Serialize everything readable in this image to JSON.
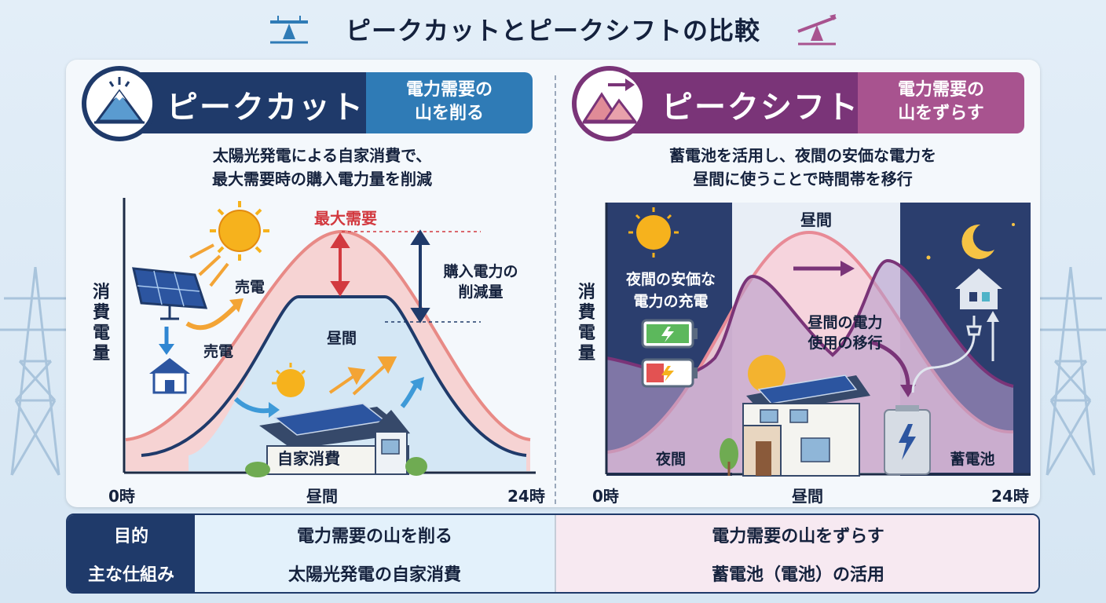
{
  "title": "ピークカットとピークシフトの比較",
  "colors": {
    "peakcut_navy": "#1f3a6a",
    "peakcut_blue": "#2f7bb6",
    "peakshift_purple": "#7a3478",
    "peakshift_pink": "#a8538f",
    "demand_red": "#d2393f"
  },
  "peak_cut": {
    "title": "ピークカット",
    "subtitle_line1": "電力需要の",
    "subtitle_line2": "山を削る",
    "desc_line1": "太陽光発電による自家消費で、",
    "desc_line2": "最大需要時の購入電力量を削減",
    "ylabel": "消費電量",
    "max_demand": "最大需要",
    "reduction_line1": "購入電力の",
    "reduction_line2": "削減量",
    "sell1": "売電",
    "sell2": "売電",
    "daytime": "昼間",
    "self_consumption": "自家消費",
    "x_start": "0時",
    "x_mid": "昼間",
    "x_end": "24時"
  },
  "peak_shift": {
    "title": "ピークシフト",
    "subtitle_line1": "電力需要の",
    "subtitle_line2": "山をずらす",
    "desc_line1": "蓄電池を活用し、夜間の安価な電力を",
    "desc_line2": "昼間に使うことで時間帯を移行",
    "ylabel": "消費電量",
    "daytime_top": "昼間",
    "night_charge_line1": "夜間の安価な",
    "night_charge_line2": "電力の充電",
    "shift_line1": "昼間の電力",
    "shift_line2": "使用の移行",
    "night": "夜間",
    "battery": "蓄電池",
    "x_start": "0時",
    "x_mid": "昼間",
    "x_end": "24時"
  },
  "table": {
    "row1_head": "目的",
    "row1_left": "電力需要の山を削る",
    "row1_right": "電力需要の山をずらす",
    "row2_head": "主な仕組み",
    "row2_left": "太陽光発電の自家消費",
    "row2_right": "蓄電池（電池）の活用"
  }
}
